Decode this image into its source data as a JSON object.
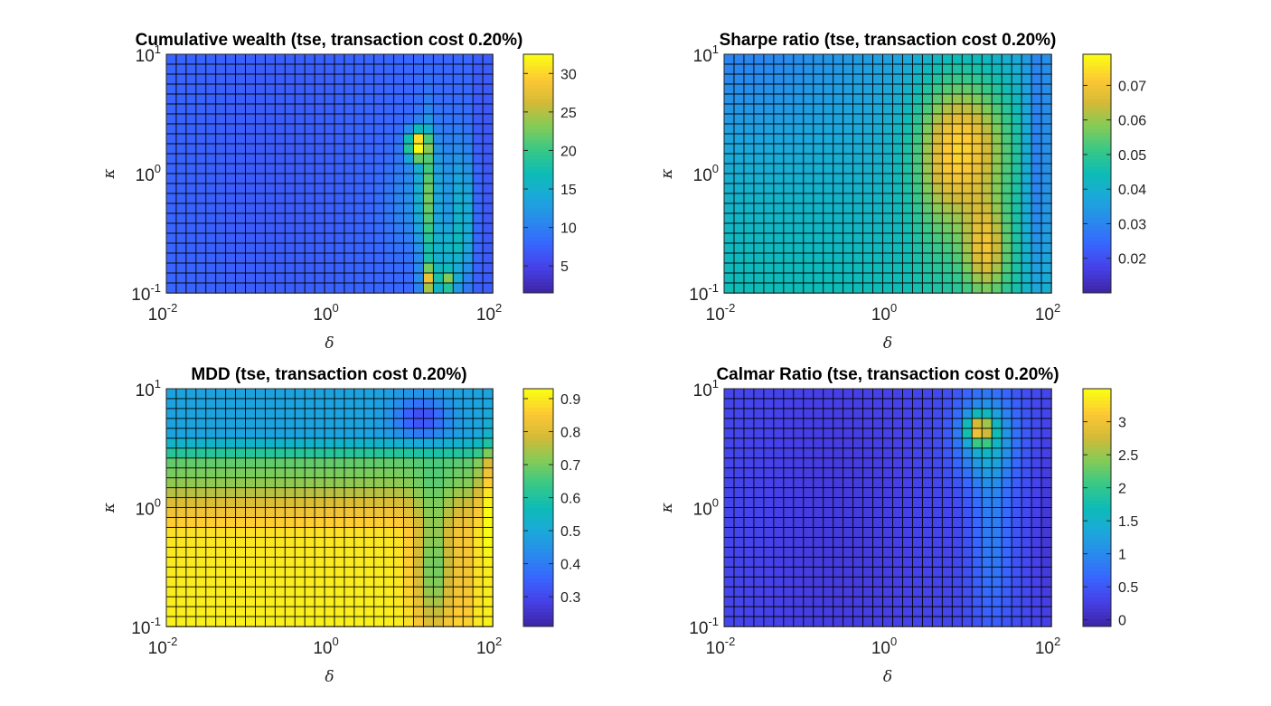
{
  "figure": {
    "background": "#ffffff",
    "colormap": "parula"
  },
  "chart_data": [
    {
      "id": "wealth",
      "type": "heatmap",
      "title": "Cumulative wealth (tse, transaction cost 0.20%)",
      "xlabel": "δ",
      "ylabel": "κ",
      "xscale": "log",
      "yscale": "log",
      "xlim": [
        0.01,
        100
      ],
      "ylim": [
        0.1,
        10
      ],
      "xticks": [
        {
          "base": "10",
          "exp": "-2"
        },
        {
          "base": "10",
          "exp": "0"
        },
        {
          "base": "10",
          "exp": "2"
        }
      ],
      "yticks": [
        {
          "base": "10",
          "exp": "-1"
        },
        {
          "base": "10",
          "exp": "0"
        },
        {
          "base": "10",
          "exp": "1"
        }
      ],
      "colorbar": {
        "range": [
          1.5,
          32.5
        ],
        "ticks": [
          5,
          10,
          15,
          20,
          25,
          30
        ],
        "labels": [
          "5",
          "10",
          "15",
          "20",
          "25",
          "30"
        ]
      },
      "grid": {
        "cols": 33,
        "rows": 24
      },
      "field": {
        "base": 0.2,
        "terms": [
          {
            "shape": "valley",
            "cx": 0.33,
            "cy": 0.55,
            "sx": 0.25,
            "sy": 0.8,
            "amp": -0.03
          },
          {
            "shape": "blob",
            "cx": 0.75,
            "cy": 0.62,
            "sx": 0.08,
            "sy": 0.2,
            "amp": 0.1
          },
          {
            "shape": "blob",
            "cx": 0.86,
            "cy": 0.82,
            "sx": 0.05,
            "sy": 0.1,
            "amp": 0.2
          },
          {
            "shape": "blob",
            "cx": 0.86,
            "cy": 0.55,
            "sx": 0.08,
            "sy": 0.25,
            "amp": 0.12
          },
          {
            "shape": "blob",
            "cx": 0.77,
            "cy": 0.38,
            "sx": 0.03,
            "sy": 0.06,
            "amp": 0.8
          },
          {
            "shape": "blob",
            "cx": 0.8,
            "cy": 0.6,
            "sx": 0.025,
            "sy": 0.3,
            "amp": 0.35
          },
          {
            "shape": "blob",
            "cx": 0.81,
            "cy": 0.95,
            "sx": 0.025,
            "sy": 0.07,
            "amp": 0.6
          },
          {
            "shape": "blob",
            "cx": 0.87,
            "cy": 0.95,
            "sx": 0.02,
            "sy": 0.05,
            "amp": 0.5
          },
          {
            "shape": "blob",
            "cx": 0.91,
            "cy": 0.7,
            "sx": 0.03,
            "sy": 0.25,
            "amp": 0.2
          },
          {
            "shape": "blob",
            "cx": 0.97,
            "cy": 0.5,
            "sx": 0.02,
            "sy": 0.6,
            "amp": -0.08
          }
        ]
      }
    },
    {
      "id": "sharpe",
      "type": "heatmap",
      "title": "Sharpe ratio (tse, transaction cost 0.20%)",
      "xlabel": "δ",
      "ylabel": "κ",
      "xscale": "log",
      "yscale": "log",
      "xlim": [
        0.01,
        100
      ],
      "ylim": [
        0.1,
        10
      ],
      "xticks": [
        {
          "base": "10",
          "exp": "-2"
        },
        {
          "base": "10",
          "exp": "0"
        },
        {
          "base": "10",
          "exp": "2"
        }
      ],
      "yticks": [
        {
          "base": "10",
          "exp": "-1"
        },
        {
          "base": "10",
          "exp": "0"
        },
        {
          "base": "10",
          "exp": "1"
        }
      ],
      "colorbar": {
        "range": [
          0.01,
          0.079
        ],
        "ticks": [
          0.02,
          0.03,
          0.04,
          0.05,
          0.06,
          0.07
        ],
        "labels": [
          "0.02",
          "0.03",
          "0.04",
          "0.05",
          "0.06",
          "0.07"
        ]
      },
      "grid": {
        "cols": 33,
        "rows": 24
      },
      "field": {
        "base": 0.38,
        "terms": [
          {
            "shape": "ramp_y",
            "amp": 0.12
          },
          {
            "shape": "corner",
            "cx": 0.02,
            "cy": 0.02,
            "sx": 0.35,
            "sy": 0.35,
            "amp": -0.1
          },
          {
            "shape": "blob",
            "cx": 0.74,
            "cy": 0.38,
            "sx": 0.14,
            "sy": 0.3,
            "amp": 0.45
          },
          {
            "shape": "blob",
            "cx": 0.8,
            "cy": 0.82,
            "sx": 0.07,
            "sy": 0.2,
            "amp": 0.35
          },
          {
            "shape": "blob",
            "cx": 0.66,
            "cy": 0.55,
            "sx": 0.08,
            "sy": 0.4,
            "amp": 0.12
          },
          {
            "shape": "blob",
            "cx": 0.96,
            "cy": 0.5,
            "sx": 0.04,
            "sy": 0.6,
            "amp": -0.2
          }
        ]
      }
    },
    {
      "id": "mdd",
      "type": "heatmap",
      "title": "MDD (tse, transaction cost 0.20%)",
      "xlabel": "δ",
      "ylabel": "κ",
      "xscale": "log",
      "yscale": "log",
      "xlim": [
        0.01,
        100
      ],
      "ylim": [
        0.1,
        10
      ],
      "xticks": [
        {
          "base": "10",
          "exp": "-2"
        },
        {
          "base": "10",
          "exp": "0"
        },
        {
          "base": "10",
          "exp": "2"
        }
      ],
      "yticks": [
        {
          "base": "10",
          "exp": "-1"
        },
        {
          "base": "10",
          "exp": "0"
        },
        {
          "base": "10",
          "exp": "1"
        }
      ],
      "colorbar": {
        "range": [
          0.21,
          0.93
        ],
        "ticks": [
          0.3,
          0.4,
          0.5,
          0.6,
          0.7,
          0.8,
          0.9
        ],
        "labels": [
          "0.3",
          "0.4",
          "0.5",
          "0.6",
          "0.7",
          "0.8",
          "0.9"
        ]
      },
      "grid": {
        "cols": 33,
        "rows": 24
      },
      "field": {
        "base": 0.0,
        "terms": [
          {
            "shape": "rowbands",
            "stops": [
              [
                0.0,
                0.38
              ],
              [
                0.2,
                0.38
              ],
              [
                0.25,
                0.5
              ],
              [
                0.3,
                0.65
              ],
              [
                0.4,
                0.72
              ],
              [
                0.48,
                0.82
              ],
              [
                0.55,
                0.9
              ],
              [
                0.62,
                0.96
              ],
              [
                1.0,
                0.98
              ]
            ]
          },
          {
            "shape": "blob",
            "cx": 0.78,
            "cy": 0.12,
            "sx": 0.08,
            "sy": 0.08,
            "amp": -0.25
          },
          {
            "shape": "blob",
            "cx": 0.82,
            "cy": 0.75,
            "sx": 0.06,
            "sy": 0.3,
            "amp": -0.3
          },
          {
            "shape": "blob",
            "cx": 0.92,
            "cy": 0.8,
            "sx": 0.03,
            "sy": 0.3,
            "amp": -0.08
          },
          {
            "shape": "blob",
            "cx": 0.99,
            "cy": 0.4,
            "sx": 0.03,
            "sy": 0.2,
            "amp": 0.2
          }
        ]
      }
    },
    {
      "id": "calmar",
      "type": "heatmap",
      "title": "Calmar Ratio (tse, transaction cost 0.20%)",
      "xlabel": "δ",
      "ylabel": "κ",
      "xscale": "log",
      "yscale": "log",
      "xlim": [
        0.01,
        100
      ],
      "ylim": [
        0.1,
        10
      ],
      "xticks": [
        {
          "base": "10",
          "exp": "-2"
        },
        {
          "base": "10",
          "exp": "0"
        },
        {
          "base": "10",
          "exp": "2"
        }
      ],
      "yticks": [
        {
          "base": "10",
          "exp": "-1"
        },
        {
          "base": "10",
          "exp": "0"
        },
        {
          "base": "10",
          "exp": "1"
        }
      ],
      "colorbar": {
        "range": [
          -0.1,
          3.5
        ],
        "ticks": [
          0,
          0.5,
          1,
          1.5,
          2,
          2.5,
          3
        ],
        "labels": [
          "0",
          "0.5",
          "1",
          "1.5",
          "2",
          "2.5",
          "3"
        ]
      },
      "grid": {
        "cols": 33,
        "rows": 24
      },
      "field": {
        "base": 0.12,
        "terms": [
          {
            "shape": "valley",
            "cx": 0.35,
            "cy": 0.6,
            "sx": 0.25,
            "sy": 0.8,
            "amp": -0.04
          },
          {
            "shape": "blob",
            "cx": 0.8,
            "cy": 0.2,
            "sx": 0.09,
            "sy": 0.18,
            "amp": 0.3
          },
          {
            "shape": "blob",
            "cx": 0.78,
            "cy": 0.17,
            "sx": 0.04,
            "sy": 0.06,
            "amp": 0.5
          },
          {
            "shape": "blob",
            "cx": 0.82,
            "cy": 0.6,
            "sx": 0.06,
            "sy": 0.4,
            "amp": 0.15
          },
          {
            "shape": "blob",
            "cx": 0.98,
            "cy": 0.6,
            "sx": 0.03,
            "sy": 0.4,
            "amp": -0.05
          }
        ]
      }
    }
  ]
}
